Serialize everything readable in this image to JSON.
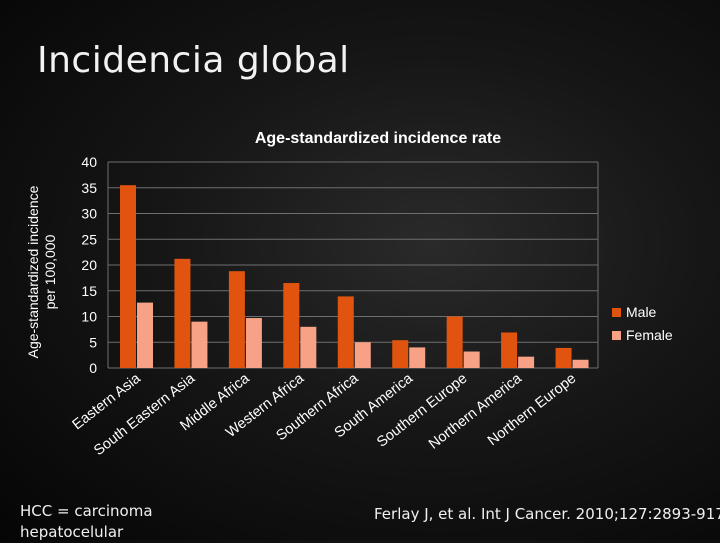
{
  "slide": {
    "title": "Incidencia global",
    "footnote": "HCC = carcinoma hepatocelular",
    "citation": "Ferlay J, et al. Int J Cancer. 2010;127:2893-917."
  },
  "colors": {
    "male": "#e0540f",
    "female": "#f7a187",
    "grid": "#6e6e6e",
    "text": "#ffffff",
    "background": "#141414"
  },
  "chart_data": {
    "type": "bar",
    "title": "Age-standardized incidence rate",
    "ylabel": "Age-standardized incidence per 100,000",
    "xlabel": "",
    "ylim": [
      0,
      40
    ],
    "yticks": [
      0,
      5,
      10,
      15,
      20,
      25,
      30,
      35,
      40
    ],
    "grid": true,
    "legend": "right",
    "categories": [
      "Eastern Asia",
      "South Eastern Asia",
      "Middle Africa",
      "Western Africa",
      "Southern Africa",
      "South America",
      "Southern Europe",
      "Northern America",
      "Northern Europe"
    ],
    "series": [
      {
        "name": "Male",
        "values": [
          35.5,
          21.2,
          18.8,
          16.5,
          13.9,
          5.4,
          10.0,
          6.9,
          3.9
        ]
      },
      {
        "name": "Female",
        "values": [
          12.7,
          9.0,
          9.7,
          8.0,
          5.0,
          4.0,
          3.2,
          2.2,
          1.6
        ]
      }
    ]
  }
}
